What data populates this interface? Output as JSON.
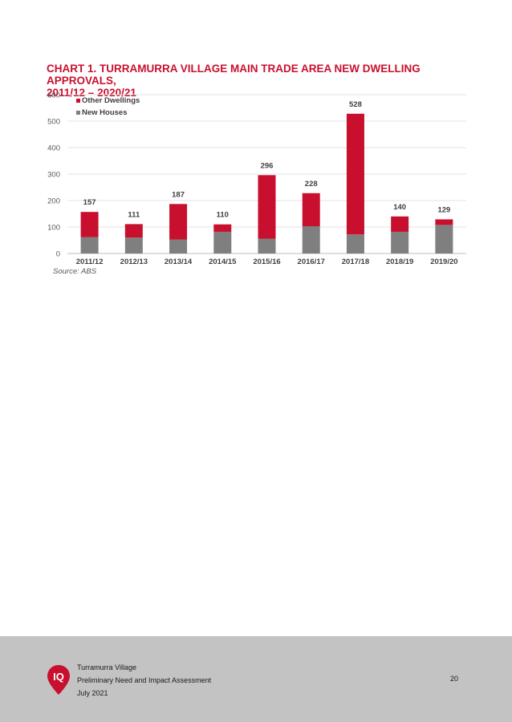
{
  "chart_data": {
    "type": "bar",
    "stacked": true,
    "title_lines": [
      "CHART 1. TURRAMURRA VILLAGE MAIN TRADE AREA NEW DWELLING APPROVALS,",
      "2011/12 – 2020/21"
    ],
    "categories": [
      "2011/12",
      "2012/13",
      "2013/14",
      "2014/15",
      "2015/16",
      "2016/17",
      "2017/18",
      "2018/19",
      "2019/20"
    ],
    "series": [
      {
        "name": "New Houses",
        "color": "#7f7f7f",
        "values": [
          62,
          60,
          53,
          82,
          56,
          103,
          72,
          82,
          108
        ]
      },
      {
        "name": "Other Dwellings",
        "color": "#c8102e",
        "values": [
          95,
          51,
          134,
          28,
          240,
          125,
          456,
          58,
          21
        ]
      }
    ],
    "totals": [
      "157",
      "111",
      "187",
      "110",
      "296",
      "228",
      "528",
      "140",
      "129"
    ],
    "ylim": [
      0,
      600
    ],
    "yticks": [
      "0",
      "100",
      "200",
      "300",
      "400",
      "500",
      "600"
    ],
    "grid": true,
    "legend_position": "top-left",
    "legend": [
      "Other Dwellings",
      "New Houses"
    ],
    "source": "Source: ABS"
  },
  "footer": {
    "lines": [
      "Turramurra Village",
      "Preliminary Need and Impact Assessment",
      "July 2021"
    ],
    "page_number": "20",
    "logo_text": "IQ"
  },
  "colors": {
    "accent": "#c8102e",
    "footer_bg": "#c3c3c3"
  }
}
